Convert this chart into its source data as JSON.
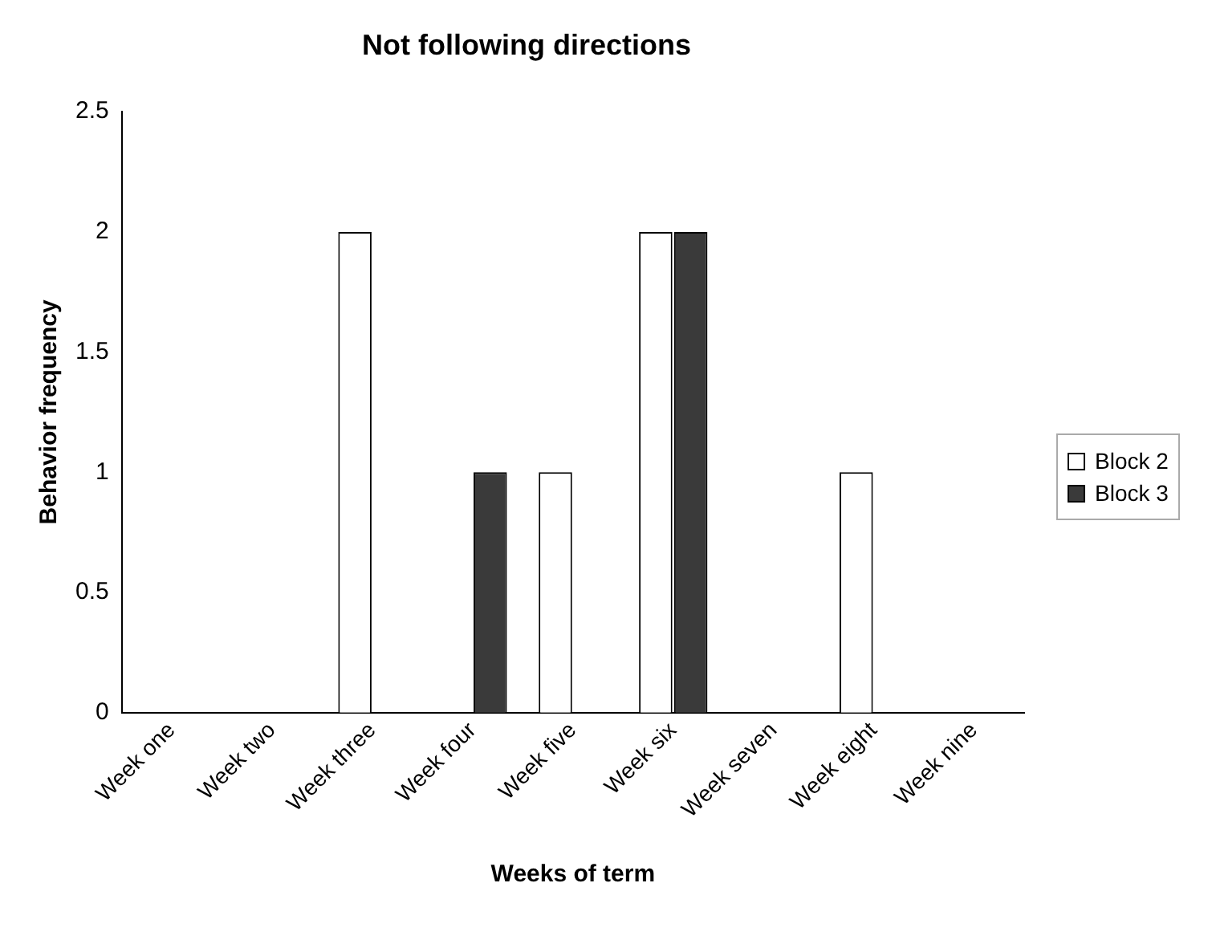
{
  "chart_data": {
    "type": "bar",
    "title": "Not following directions",
    "xlabel": "Weeks of term",
    "ylabel": "Behavior frequency",
    "categories": [
      "Week one",
      "Week two",
      "Week three",
      "Week four",
      "Week five",
      "Week six",
      "Week seven",
      "Week eight",
      "Week nine"
    ],
    "series": [
      {
        "name": "Block 2",
        "color": "#ffffff",
        "values": [
          0,
          0,
          2,
          0,
          1,
          2,
          0,
          1,
          0
        ]
      },
      {
        "name": "Block 3",
        "color": "#3a3a3a",
        "values": [
          0,
          0,
          0,
          1,
          0,
          2,
          0,
          0,
          0
        ]
      }
    ],
    "ylim": [
      0,
      2.5
    ],
    "yticks": [
      0,
      0.5,
      1,
      1.5,
      2,
      2.5
    ],
    "grid": false,
    "legend": "right"
  }
}
